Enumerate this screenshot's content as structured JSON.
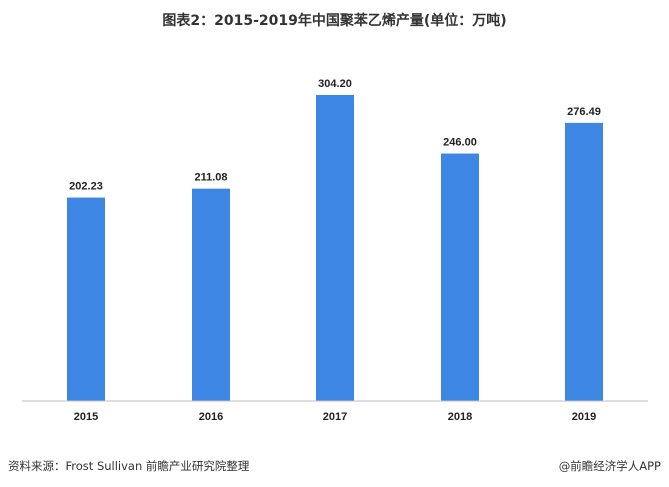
{
  "chart_data": {
    "type": "bar",
    "title": "图表2：2015-2019年中国聚苯乙烯产量(单位：万吨)",
    "categories": [
      "2015",
      "2016",
      "2017",
      "2018",
      "2019"
    ],
    "series": [
      {
        "values": [
          202.23,
          211.08,
          304.2,
          246.0,
          276.49
        ],
        "labels": [
          "202.23",
          "211.08",
          "304.20",
          "246.00",
          "276.49"
        ],
        "color": "#3e86e4"
      }
    ],
    "xlabel": "",
    "ylabel": "",
    "ylim": [
      0,
      304.2
    ],
    "grid": false,
    "legend": "none"
  },
  "footer": {
    "source": "资料来源：Frost Sullivan 前瞻产业研究院整理",
    "credit": "@前瞻经济学人APP"
  },
  "colors": {
    "bar": "#3e86e4",
    "axis": "#bfbfbf",
    "text": "#222222"
  }
}
